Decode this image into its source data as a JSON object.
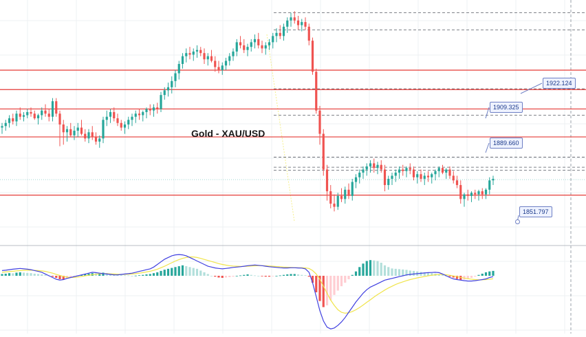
{
  "chart_data": {
    "type": "candlestick",
    "title": "Gold - XAU/USD",
    "colors": {
      "up": "#26a69a",
      "down": "#ef5350",
      "resistance": "#e53935",
      "macd_line": "#3f3fe0",
      "signal_line": "#f0e44a",
      "hist_up_strong": "#26a69a",
      "hist_up_weak": "#b2dfdb",
      "hist_down_strong": "#ef5350",
      "hist_down_weak": "#ffcdd2",
      "fib_line": "#f5ef8a"
    },
    "y_range": [
      1845,
      1985
    ],
    "levels": {
      "solid": [
        1946.0,
        1933.5,
        1921.0,
        1903.0,
        1865.5
      ],
      "dashed": [
        1983.0,
        1972.0,
        1934.0,
        1917.0,
        1890.0,
        1883.5,
        1881.5
      ]
    },
    "labels": [
      {
        "text": "1922.124",
        "value": 1922.124
      },
      {
        "text": "1909.325",
        "value": 1909.325
      },
      {
        "text": "1889.660",
        "value": 1889.66
      },
      {
        "text": "1851.797",
        "value": 1851.797
      }
    ],
    "current_price": 1875.5,
    "candles": [
      [
        1909,
        1912,
        1905,
        1910
      ],
      [
        1910,
        1914,
        1907,
        1912
      ],
      [
        1912,
        1917,
        1909,
        1915
      ],
      [
        1915,
        1918,
        1911,
        1913
      ],
      [
        1913,
        1920,
        1910,
        1918
      ],
      [
        1918,
        1922,
        1914,
        1916
      ],
      [
        1916,
        1919,
        1913,
        1917
      ],
      [
        1917,
        1921,
        1915,
        1919
      ],
      [
        1919,
        1922,
        1916,
        1918
      ],
      [
        1918,
        1920,
        1914,
        1915
      ],
      [
        1915,
        1918,
        1911,
        1917
      ],
      [
        1917,
        1922,
        1914,
        1920
      ],
      [
        1920,
        1924,
        1916,
        1918
      ],
      [
        1918,
        1921,
        1913,
        1916
      ],
      [
        1916,
        1928,
        1913,
        1926
      ],
      [
        1926,
        1928,
        1916,
        1918
      ],
      [
        1918,
        1920,
        1897,
        1911
      ],
      [
        1911,
        1914,
        1898,
        1906
      ],
      [
        1906,
        1910,
        1900,
        1908
      ],
      [
        1908,
        1912,
        1903,
        1904
      ],
      [
        1904,
        1910,
        1901,
        1907
      ],
      [
        1907,
        1912,
        1903,
        1909
      ],
      [
        1909,
        1914,
        1904,
        1905
      ],
      [
        1905,
        1908,
        1900,
        1902
      ],
      [
        1902,
        1908,
        1899,
        1906
      ],
      [
        1906,
        1910,
        1901,
        1903
      ],
      [
        1903,
        1906,
        1898,
        1900
      ],
      [
        1900,
        1904,
        1896,
        1902
      ],
      [
        1902,
        1916,
        1899,
        1914
      ],
      [
        1914,
        1920,
        1910,
        1916
      ],
      [
        1916,
        1921,
        1912,
        1919
      ],
      [
        1919,
        1922,
        1913,
        1915
      ],
      [
        1915,
        1918,
        1910,
        1912
      ],
      [
        1912,
        1914,
        1907,
        1909
      ],
      [
        1909,
        1913,
        1905,
        1911
      ],
      [
        1911,
        1916,
        1908,
        1914
      ],
      [
        1914,
        1918,
        1910,
        1916
      ],
      [
        1916,
        1920,
        1912,
        1918
      ],
      [
        1918,
        1921,
        1914,
        1917
      ],
      [
        1917,
        1920,
        1913,
        1919
      ],
      [
        1919,
        1922,
        1915,
        1921
      ],
      [
        1921,
        1924,
        1917,
        1920
      ],
      [
        1920,
        1924,
        1916,
        1922
      ],
      [
        1922,
        1925,
        1918,
        1921
      ],
      [
        1921,
        1932,
        1919,
        1930
      ],
      [
        1930,
        1935,
        1927,
        1933
      ],
      [
        1933,
        1938,
        1929,
        1935
      ],
      [
        1935,
        1942,
        1931,
        1939
      ],
      [
        1939,
        1946,
        1935,
        1944
      ],
      [
        1944,
        1952,
        1940,
        1950
      ],
      [
        1950,
        1957,
        1947,
        1955
      ],
      [
        1955,
        1960,
        1951,
        1957
      ],
      [
        1957,
        1961,
        1953,
        1956
      ],
      [
        1956,
        1960,
        1952,
        1958
      ],
      [
        1958,
        1962,
        1954,
        1959
      ],
      [
        1959,
        1961,
        1955,
        1957
      ],
      [
        1957,
        1960,
        1950,
        1953
      ],
      [
        1953,
        1957,
        1949,
        1955
      ],
      [
        1955,
        1959,
        1951,
        1952
      ],
      [
        1952,
        1955,
        1945,
        1948
      ],
      [
        1948,
        1952,
        1944,
        1946
      ],
      [
        1946,
        1951,
        1943,
        1949
      ],
      [
        1949,
        1954,
        1946,
        1952
      ],
      [
        1952,
        1957,
        1949,
        1955
      ],
      [
        1955,
        1960,
        1952,
        1958
      ],
      [
        1958,
        1966,
        1955,
        1964
      ],
      [
        1964,
        1968,
        1960,
        1962
      ],
      [
        1962,
        1966,
        1957,
        1959
      ],
      [
        1959,
        1963,
        1955,
        1961
      ],
      [
        1961,
        1966,
        1958,
        1964
      ],
      [
        1964,
        1969,
        1960,
        1966
      ],
      [
        1966,
        1970,
        1960,
        1962
      ],
      [
        1962,
        1965,
        1957,
        1960
      ],
      [
        1960,
        1964,
        1956,
        1962
      ],
      [
        1962,
        1966,
        1959,
        1964
      ],
      [
        1964,
        1970,
        1960,
        1968
      ],
      [
        1968,
        1973,
        1964,
        1970
      ],
      [
        1970,
        1975,
        1966,
        1968
      ],
      [
        1968,
        1976,
        1965,
        1974
      ],
      [
        1974,
        1980,
        1970,
        1978
      ],
      [
        1978,
        1983,
        1974,
        1980
      ],
      [
        1980,
        1984,
        1976,
        1978
      ],
      [
        1978,
        1981,
        1972,
        1975
      ],
      [
        1975,
        1979,
        1971,
        1977
      ],
      [
        1977,
        1980,
        1972,
        1974
      ],
      [
        1974,
        1976,
        1962,
        1965
      ],
      [
        1965,
        1967,
        1943,
        1945
      ],
      [
        1945,
        1947,
        1918,
        1920
      ],
      [
        1920,
        1923,
        1898,
        1905
      ],
      [
        1905,
        1908,
        1878,
        1882
      ],
      [
        1882,
        1885,
        1862,
        1868
      ],
      [
        1868,
        1872,
        1857,
        1860
      ],
      [
        1860,
        1866,
        1855,
        1858
      ],
      [
        1858,
        1867,
        1856,
        1865
      ],
      [
        1865,
        1870,
        1861,
        1863
      ],
      [
        1863,
        1871,
        1860,
        1869
      ],
      [
        1869,
        1873,
        1863,
        1865
      ],
      [
        1865,
        1876,
        1862,
        1874
      ],
      [
        1874,
        1879,
        1870,
        1877
      ],
      [
        1877,
        1882,
        1873,
        1880
      ],
      [
        1880,
        1884,
        1876,
        1882
      ],
      [
        1882,
        1886,
        1878,
        1884
      ],
      [
        1884,
        1888,
        1880,
        1886
      ],
      [
        1886,
        1889,
        1880,
        1883
      ],
      [
        1883,
        1887,
        1879,
        1885
      ],
      [
        1885,
        1888,
        1880,
        1882
      ],
      [
        1882,
        1885,
        1868,
        1872
      ],
      [
        1872,
        1878,
        1869,
        1876
      ],
      [
        1876,
        1880,
        1872,
        1878
      ],
      [
        1878,
        1882,
        1874,
        1880
      ],
      [
        1880,
        1884,
        1876,
        1882
      ],
      [
        1882,
        1885,
        1878,
        1881
      ],
      [
        1881,
        1884,
        1877,
        1883
      ],
      [
        1883,
        1886,
        1879,
        1882
      ],
      [
        1882,
        1884,
        1875,
        1877
      ],
      [
        1877,
        1881,
        1873,
        1879
      ],
      [
        1879,
        1882,
        1874,
        1876
      ],
      [
        1876,
        1880,
        1872,
        1878
      ],
      [
        1878,
        1881,
        1874,
        1877
      ],
      [
        1877,
        1880,
        1873,
        1879
      ],
      [
        1879,
        1882,
        1875,
        1881
      ],
      [
        1881,
        1884,
        1877,
        1883
      ],
      [
        1883,
        1885,
        1879,
        1880
      ],
      [
        1880,
        1883,
        1876,
        1882
      ],
      [
        1882,
        1884,
        1876,
        1878
      ],
      [
        1878,
        1881,
        1873,
        1875
      ],
      [
        1875,
        1878,
        1870,
        1872
      ],
      [
        1872,
        1875,
        1860,
        1863
      ],
      [
        1863,
        1867,
        1858,
        1866
      ],
      [
        1866,
        1869,
        1862,
        1865
      ],
      [
        1865,
        1868,
        1861,
        1867
      ],
      [
        1867,
        1869,
        1863,
        1866
      ],
      [
        1866,
        1869,
        1862,
        1868
      ],
      [
        1868,
        1870,
        1863,
        1866
      ],
      [
        1866,
        1870,
        1863,
        1869
      ],
      [
        1869,
        1877,
        1866,
        1875
      ],
      [
        1875,
        1878,
        1872,
        1876
      ]
    ],
    "macd": {
      "y_range": [
        -3.2,
        1.5
      ],
      "histogram": [
        0.1,
        0.12,
        0.15,
        0.14,
        0.18,
        0.2,
        0.18,
        0.16,
        0.15,
        0.12,
        0.1,
        0.08,
        0.05,
        0.02,
        -0.05,
        -0.12,
        -0.2,
        -0.22,
        -0.15,
        -0.1,
        -0.05,
        0.02,
        0.05,
        0.1,
        0.12,
        0.15,
        0.14,
        0.16,
        0.18,
        0.15,
        0.12,
        0.1,
        0.08,
        0.05,
        0.03,
        0.02,
        0.0,
        0.01,
        0.03,
        0.05,
        0.08,
        0.1,
        0.15,
        0.2,
        0.28,
        0.35,
        0.4,
        0.45,
        0.5,
        0.55,
        0.6,
        0.55,
        0.5,
        0.45,
        0.4,
        0.3,
        0.2,
        0.1,
        0.0,
        -0.05,
        -0.1,
        -0.12,
        -0.1,
        -0.08,
        -0.05,
        0.0,
        0.02,
        0.05,
        0.08,
        0.05,
        0.02,
        0.0,
        -0.02,
        -0.05,
        -0.05,
        -0.02,
        0.0,
        0.02,
        0.05,
        0.08,
        0.1,
        0.1,
        0.08,
        0.05,
        0.03,
        -0.05,
        -0.4,
        -0.95,
        -1.45,
        -1.8,
        -1.7,
        -1.4,
        -1.1,
        -0.85,
        -0.6,
        -0.4,
        -0.2,
        0.05,
        0.25,
        0.5,
        0.7,
        0.85,
        0.9,
        0.88,
        0.85,
        0.75,
        0.6,
        0.5,
        0.42,
        0.4,
        0.38,
        0.36,
        0.34,
        0.3,
        0.28,
        0.25,
        0.22,
        0.2,
        0.18,
        0.15,
        0.12,
        0.08,
        0.05,
        0.0,
        -0.05,
        -0.1,
        -0.18,
        -0.25,
        -0.22,
        -0.18,
        -0.12,
        -0.05,
        0.05,
        0.12,
        0.2,
        0.25,
        0.28
      ],
      "macd_line": [
        0.3,
        0.32,
        0.35,
        0.38,
        0.4,
        0.42,
        0.4,
        0.38,
        0.35,
        0.3,
        0.25,
        0.2,
        0.1,
        0.0,
        -0.1,
        -0.2,
        -0.25,
        -0.22,
        -0.15,
        -0.1,
        -0.05,
        0.0,
        0.05,
        0.1,
        0.15,
        0.2,
        0.18,
        0.15,
        0.12,
        0.1,
        0.08,
        0.05,
        0.05,
        0.08,
        0.1,
        0.12,
        0.15,
        0.2,
        0.25,
        0.3,
        0.35,
        0.4,
        0.5,
        0.65,
        0.8,
        0.95,
        1.05,
        1.15,
        1.2,
        1.22,
        1.2,
        1.15,
        1.05,
        0.95,
        0.85,
        0.75,
        0.65,
        0.55,
        0.5,
        0.45,
        0.42,
        0.4,
        0.42,
        0.45,
        0.48,
        0.5,
        0.52,
        0.55,
        0.58,
        0.6,
        0.62,
        0.6,
        0.58,
        0.55,
        0.52,
        0.5,
        0.48,
        0.46,
        0.45,
        0.45,
        0.46,
        0.46,
        0.45,
        0.44,
        0.4,
        0.2,
        -0.4,
        -1.2,
        -2.0,
        -2.6,
        -2.95,
        -3.05,
        -3.0,
        -2.85,
        -2.65,
        -2.4,
        -2.1,
        -1.8,
        -1.5,
        -1.25,
        -1.0,
        -0.8,
        -0.65,
        -0.55,
        -0.45,
        -0.35,
        -0.25,
        -0.2,
        -0.15,
        -0.1,
        -0.05,
        0.0,
        0.05,
        0.08,
        0.1,
        0.12,
        0.14,
        0.16,
        0.18,
        0.19,
        0.2,
        0.18,
        0.1,
        0.0,
        -0.1,
        -0.18,
        -0.22,
        -0.25,
        -0.28,
        -0.3,
        -0.3,
        -0.28,
        -0.25,
        -0.22,
        -0.18,
        -0.1,
        -0.05
      ],
      "signal_line": [
        0.2,
        0.22,
        0.24,
        0.26,
        0.28,
        0.3,
        0.31,
        0.32,
        0.32,
        0.31,
        0.3,
        0.28,
        0.25,
        0.2,
        0.15,
        0.08,
        0.02,
        -0.04,
        -0.08,
        -0.1,
        -0.09,
        -0.07,
        -0.04,
        0.0,
        0.03,
        0.06,
        0.09,
        0.11,
        0.12,
        0.12,
        0.11,
        0.1,
        0.09,
        0.08,
        0.08,
        0.09,
        0.1,
        0.12,
        0.15,
        0.18,
        0.22,
        0.26,
        0.31,
        0.38,
        0.46,
        0.55,
        0.65,
        0.75,
        0.85,
        0.93,
        1.0,
        1.05,
        1.08,
        1.08,
        1.05,
        1.0,
        0.94,
        0.88,
        0.82,
        0.76,
        0.7,
        0.65,
        0.61,
        0.58,
        0.56,
        0.55,
        0.54,
        0.54,
        0.55,
        0.56,
        0.57,
        0.58,
        0.58,
        0.57,
        0.56,
        0.55,
        0.53,
        0.52,
        0.5,
        0.49,
        0.48,
        0.47,
        0.46,
        0.46,
        0.45,
        0.42,
        0.3,
        0.1,
        -0.2,
        -0.6,
        -1.0,
        -1.4,
        -1.7,
        -1.95,
        -2.1,
        -2.15,
        -2.12,
        -2.05,
        -1.95,
        -1.82,
        -1.68,
        -1.52,
        -1.38,
        -1.22,
        -1.08,
        -0.95,
        -0.82,
        -0.7,
        -0.6,
        -0.5,
        -0.42,
        -0.35,
        -0.28,
        -0.22,
        -0.17,
        -0.12,
        -0.08,
        -0.04,
        0.0,
        0.03,
        0.06,
        0.08,
        0.08,
        0.06,
        0.03,
        -0.01,
        -0.05,
        -0.09,
        -0.13,
        -0.17,
        -0.2,
        -0.22,
        -0.23,
        -0.23,
        -0.22,
        -0.2,
        -0.17
      ]
    }
  }
}
